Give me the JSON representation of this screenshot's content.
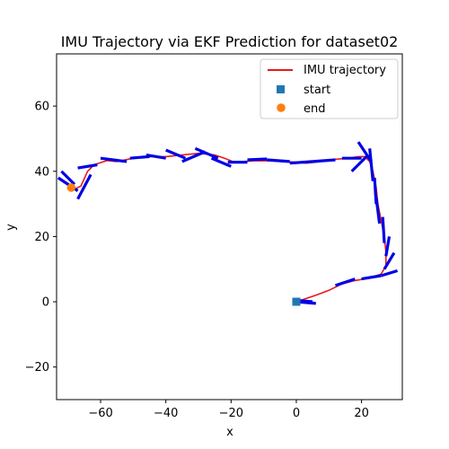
{
  "chart_data": {
    "type": "line",
    "title": "IMU Trajectory via EKF Prediction for dataset02",
    "xlabel": "x",
    "ylabel": "y",
    "xlim": [
      -73.5,
      32.5
    ],
    "ylim": [
      -30,
      76
    ],
    "xticks": [
      -60,
      -40,
      -20,
      0,
      20
    ],
    "yticks": [
      -20,
      0,
      20,
      40,
      60
    ],
    "grid": false,
    "legend_position": "upper right",
    "colors": {
      "trajectory": "#e41a1c",
      "heading": "#0000e6",
      "start": "#1f77b4",
      "end": "#ff7f0e"
    },
    "legend": [
      "IMU trajectory",
      "start",
      "end"
    ],
    "trajectory": [
      [
        0,
        0
      ],
      [
        3,
        1
      ],
      [
        6,
        2
      ],
      [
        10,
        3.5
      ],
      [
        14,
        5.5
      ],
      [
        18,
        6.5
      ],
      [
        22,
        7.2
      ],
      [
        26,
        8.5
      ],
      [
        27.5,
        11
      ],
      [
        27.5,
        15
      ],
      [
        27,
        20
      ],
      [
        26,
        25
      ],
      [
        25,
        30
      ],
      [
        24.5,
        35
      ],
      [
        23.5,
        40
      ],
      [
        22.5,
        43
      ],
      [
        21,
        44.5
      ],
      [
        19,
        44.5
      ],
      [
        16,
        44
      ],
      [
        10,
        43.5
      ],
      [
        6,
        42.8
      ],
      [
        3,
        42.5
      ],
      [
        0,
        42.8
      ],
      [
        -4,
        43
      ],
      [
        -8,
        43.2
      ],
      [
        -13,
        43.2
      ],
      [
        -19,
        42.8
      ],
      [
        -22,
        44
      ],
      [
        -25,
        45
      ],
      [
        -30,
        45.5
      ],
      [
        -35,
        45
      ],
      [
        -40,
        44.5
      ],
      [
        -45,
        44.5
      ],
      [
        -50,
        44
      ],
      [
        -55,
        43
      ],
      [
        -58,
        43.3
      ],
      [
        -62,
        42
      ],
      [
        -64,
        40
      ],
      [
        -66,
        35.5
      ],
      [
        -68,
        34.5
      ],
      [
        -69,
        35
      ]
    ],
    "headings": [
      [
        [
          0,
          0
        ],
        [
          6,
          -0.5
        ]
      ],
      [
        [
          -1,
          0.5
        ],
        [
          5,
          0
        ]
      ],
      [
        [
          12,
          5
        ],
        [
          18,
          7
        ]
      ],
      [
        [
          20,
          7
        ],
        [
          26,
          8
        ]
      ],
      [
        [
          26,
          8
        ],
        [
          31,
          9.5
        ]
      ],
      [
        [
          27,
          10
        ],
        [
          30,
          15
        ]
      ],
      [
        [
          27.5,
          14
        ],
        [
          28.5,
          20
        ]
      ],
      [
        [
          27,
          18
        ],
        [
          26.5,
          26
        ]
      ],
      [
        [
          25.5,
          24
        ],
        [
          24.5,
          32
        ]
      ],
      [
        [
          24.5,
          30
        ],
        [
          24,
          38
        ]
      ],
      [
        [
          23.5,
          37
        ],
        [
          22.5,
          47
        ]
      ],
      [
        [
          23,
          43
        ],
        [
          19,
          49
        ]
      ],
      [
        [
          22,
          45
        ],
        [
          17,
          40
        ]
      ],
      [
        [
          20,
          44
        ],
        [
          14,
          44
        ]
      ],
      [
        [
          12,
          43.5
        ],
        [
          5,
          43
        ]
      ],
      [
        [
          5,
          43
        ],
        [
          -2,
          42.5
        ]
      ],
      [
        [
          -2,
          43
        ],
        [
          -9,
          43.5
        ]
      ],
      [
        [
          -9,
          43.8
        ],
        [
          -15,
          43.5
        ]
      ],
      [
        [
          -15,
          42.8
        ],
        [
          -21,
          42.8
        ]
      ],
      [
        [
          -20,
          41.5
        ],
        [
          -26,
          44
        ]
      ],
      [
        [
          -24,
          44
        ],
        [
          -31,
          47
        ]
      ],
      [
        [
          -28,
          46
        ],
        [
          -35,
          43
        ]
      ],
      [
        [
          -34,
          44
        ],
        [
          -40,
          46.5
        ]
      ],
      [
        [
          -40,
          44
        ],
        [
          -46,
          45
        ]
      ],
      [
        [
          -45,
          44.5
        ],
        [
          -51,
          44
        ]
      ],
      [
        [
          -52,
          43
        ],
        [
          -60,
          44
        ]
      ],
      [
        [
          -61,
          42
        ],
        [
          -67,
          41
        ]
      ],
      [
        [
          -63,
          39
        ],
        [
          -67,
          31.5
        ]
      ],
      [
        [
          -68,
          36
        ],
        [
          -72,
          40
        ]
      ],
      [
        [
          -67,
          34
        ],
        [
          -73,
          38
        ]
      ]
    ],
    "start": [
      0,
      0
    ],
    "end": [
      -69,
      35
    ]
  }
}
